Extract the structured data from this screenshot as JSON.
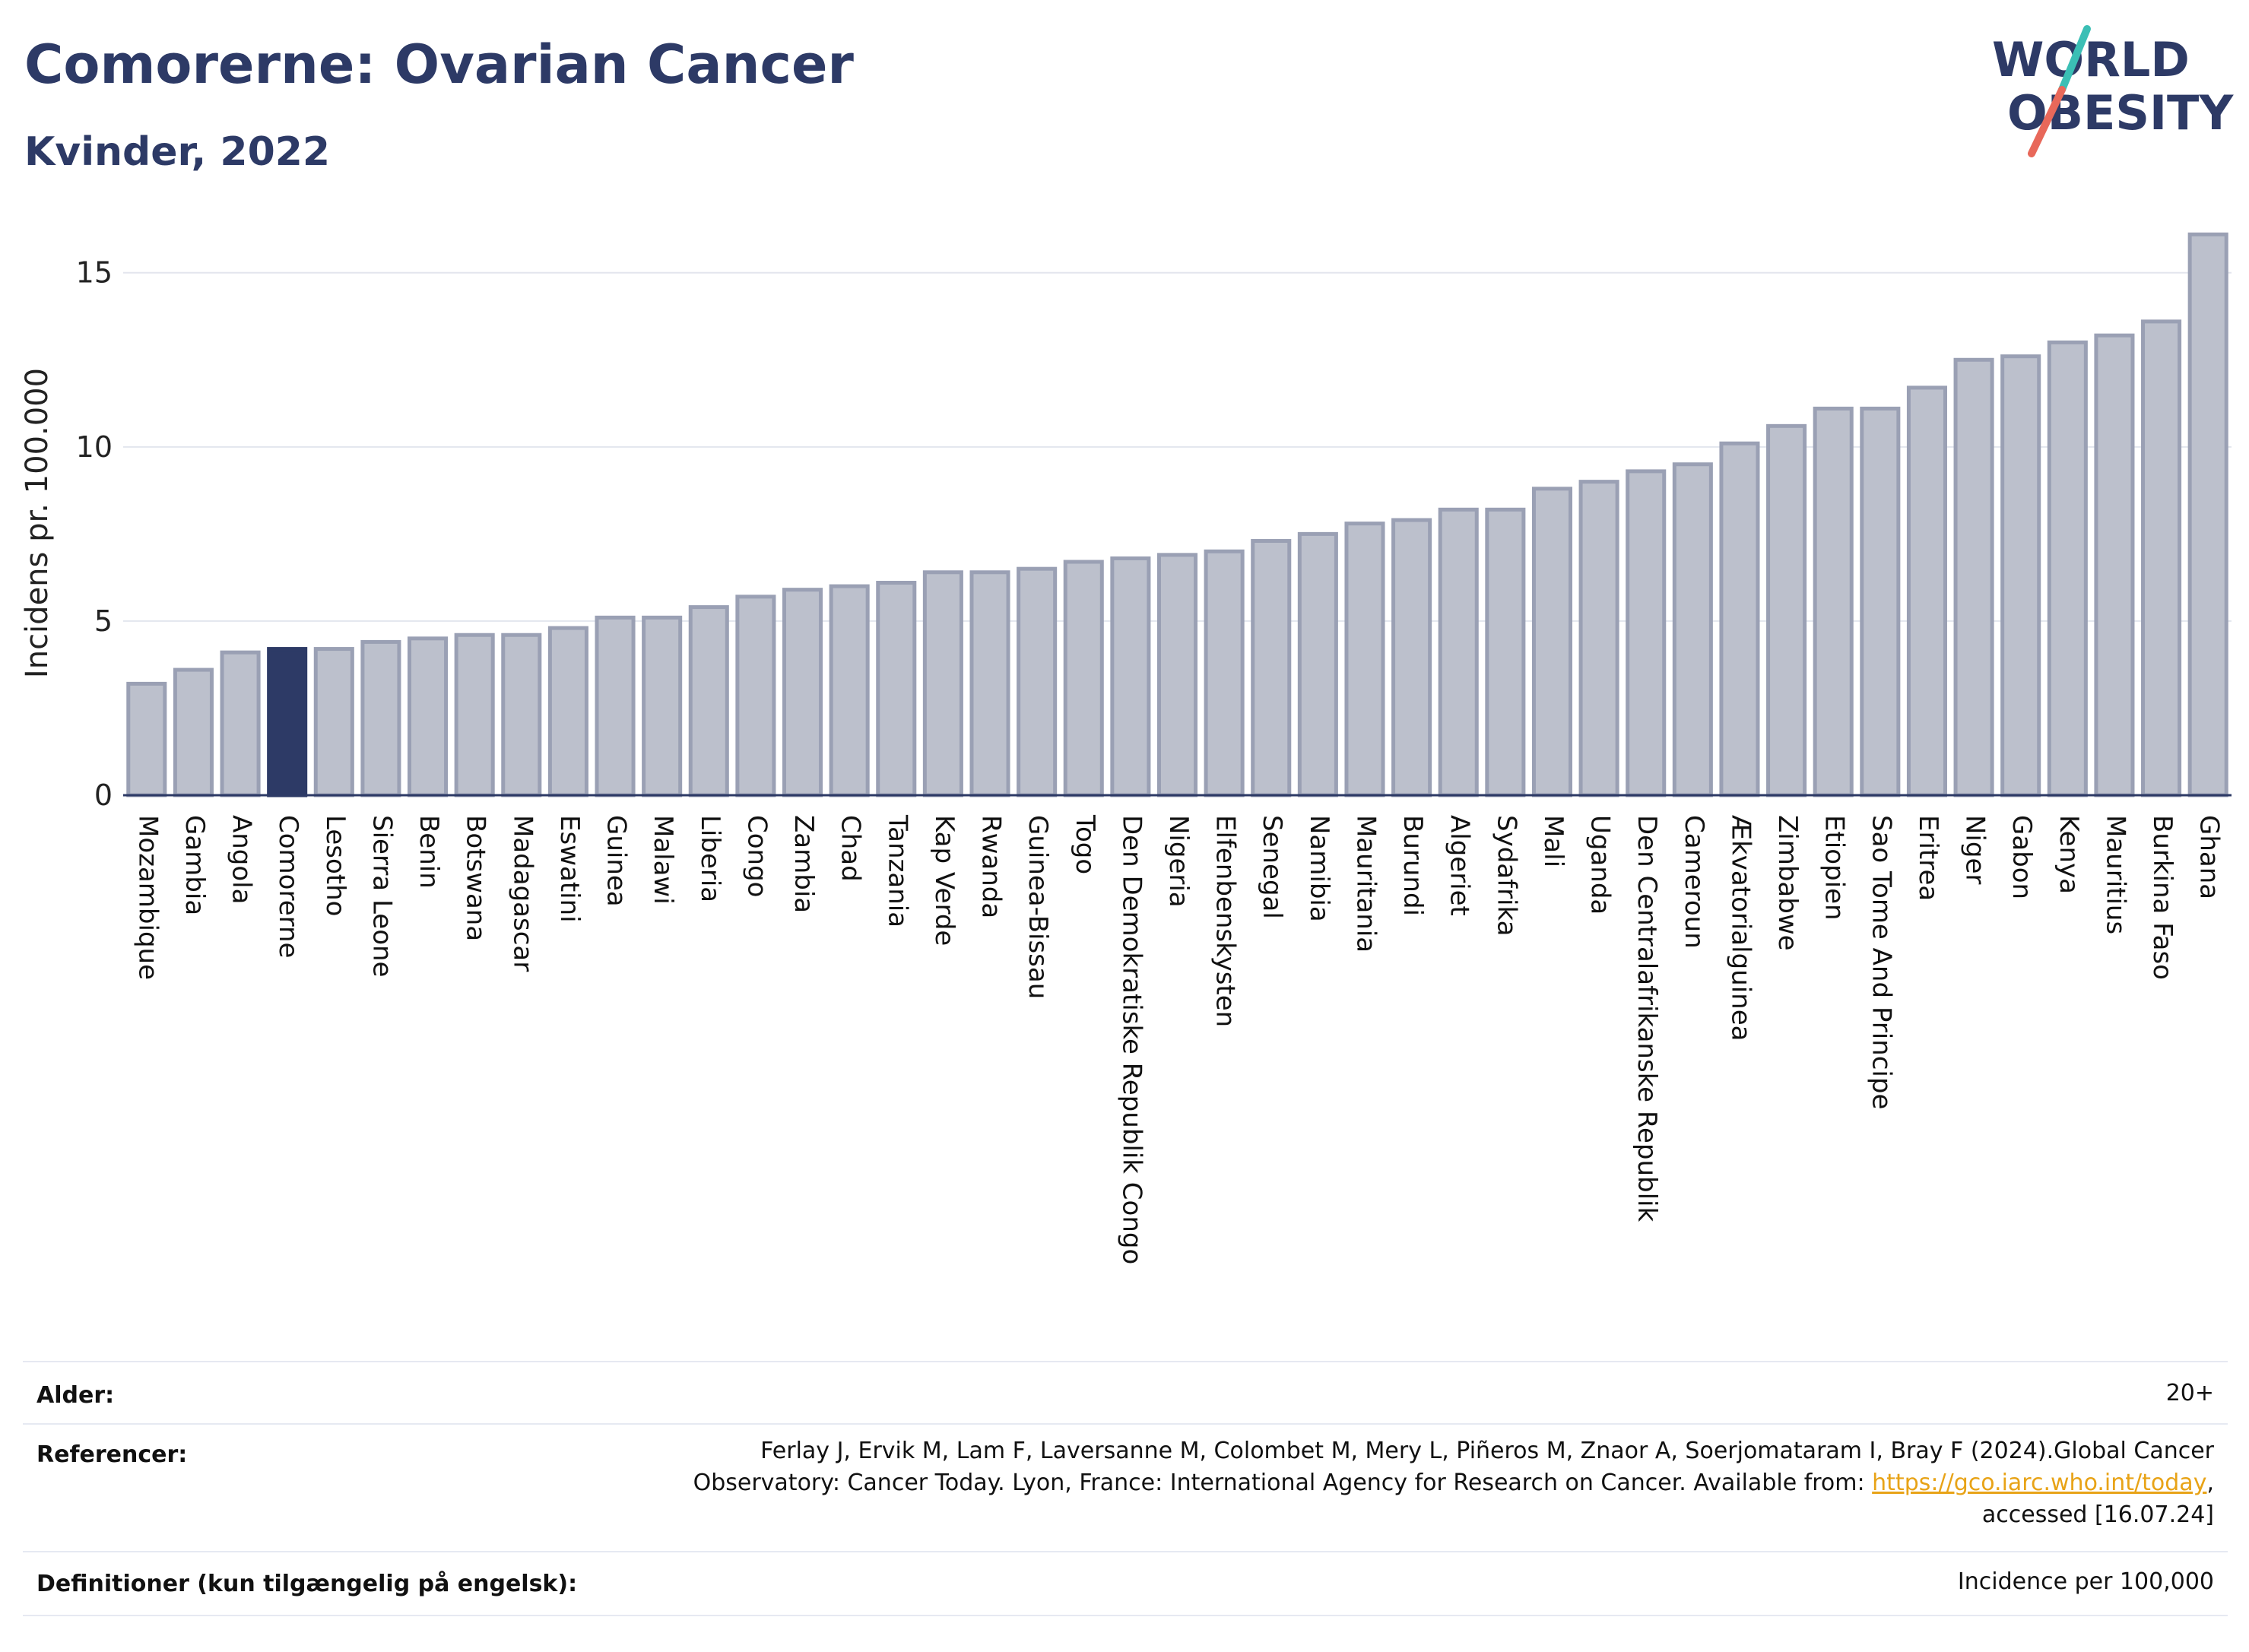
{
  "header": {
    "title": "Comorerne: Ovarian Cancer",
    "subtitle": "Kvinder, 2022"
  },
  "logo": {
    "line1": "WORLD",
    "line2": "OBESITY",
    "colors": {
      "text": "#2d3a66",
      "slash_top": "#3bbfb5",
      "slash_bottom": "#e8685a"
    }
  },
  "chart_data": {
    "type": "bar",
    "ylabel": "Incidens pr. 100.000",
    "xlabel": "",
    "ylim": [
      0,
      16.5
    ],
    "yticks": [
      0,
      5,
      10,
      15
    ],
    "grid": true,
    "highlight": "Comorerne",
    "colors": {
      "bar": "#bcc0cc",
      "bar_edge": "#9aa0b4",
      "highlight": "#2d3a66"
    },
    "categories": [
      "Mozambique",
      "Gambia",
      "Angola",
      "Comorerne",
      "Lesotho",
      "Sierra Leone",
      "Benin",
      "Botswana",
      "Madagascar",
      "Eswatini",
      "Guinea",
      "Malawi",
      "Liberia",
      "Congo",
      "Zambia",
      "Chad",
      "Tanzania",
      "Kap Verde",
      "Rwanda",
      "Guinea-Bissau",
      "Togo",
      "Den Demokratiske Republik Congo",
      "Nigeria",
      "Elfenbenskysten",
      "Senegal",
      "Namibia",
      "Mauritania",
      "Burundi",
      "Algeriet",
      "Sydafrika",
      "Mali",
      "Uganda",
      "Den Centralafrikanske Republik",
      "Cameroun",
      "Ækvatorialguinea",
      "Zimbabwe",
      "Etiopien",
      "Sao Tome And Principe",
      "Eritrea",
      "Niger",
      "Gabon",
      "Kenya",
      "Mauritius",
      "Burkina Faso",
      "Ghana"
    ],
    "values": [
      3.2,
      3.6,
      4.1,
      4.2,
      4.2,
      4.4,
      4.5,
      4.6,
      4.6,
      4.8,
      5.1,
      5.1,
      5.4,
      5.7,
      5.9,
      6.0,
      6.1,
      6.4,
      6.4,
      6.5,
      6.7,
      6.8,
      6.9,
      7.0,
      7.3,
      7.5,
      7.8,
      7.9,
      8.2,
      8.2,
      8.8,
      9.0,
      9.3,
      9.5,
      10.1,
      10.6,
      11.1,
      11.1,
      11.7,
      12.5,
      12.6,
      13.0,
      13.2,
      13.6,
      16.1
    ]
  },
  "meta": {
    "age_label": "Alder:",
    "age_value": "20+",
    "ref_label": "Referencer:",
    "ref_line1": "Ferlay J, Ervik M, Lam F, Laversanne M, Colombet M, Mery L, Piñeros M, Znaor A, Soerjomataram I, Bray F (2024).Global Cancer",
    "ref_line2_pre": "Observatory: Cancer Today. Lyon, France: International Agency for Research on Cancer. Available from: ",
    "ref_link": "https://gco.iarc.who.int/today",
    "ref_line2_post": ",",
    "ref_line3": "accessed [16.07.24]",
    "def_label": "Definitioner (kun tilgængelig på engelsk):",
    "def_value": "Incidence per 100,000"
  }
}
